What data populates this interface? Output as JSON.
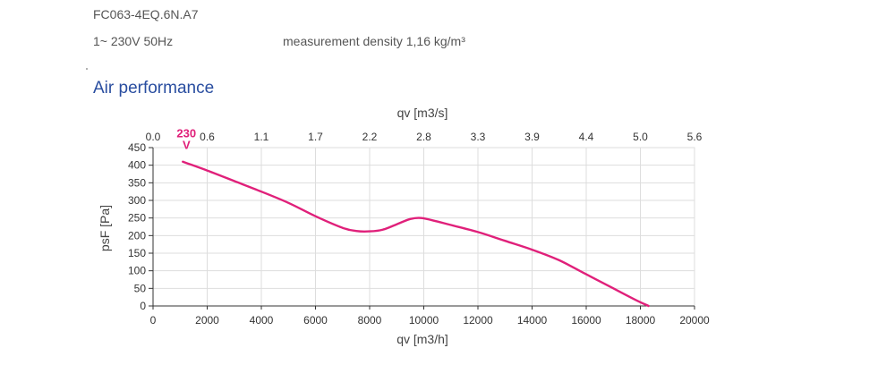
{
  "header": {
    "model": "FC063-4EQ.6N.A7",
    "supply": "1~ 230V 50Hz",
    "density": "measurement density 1,16 kg/m³"
  },
  "section": {
    "title": "Air performance"
  },
  "colors": {
    "curve": "#e0207a",
    "grid": "#dddddd",
    "axis": "#333333",
    "title": "#2a4ea0"
  },
  "chart_data": {
    "type": "line",
    "xlabel": "qv [m3/h]",
    "x2label": "qv [m3/s]",
    "ylabel": "psF [Pa]",
    "xlim": [
      0,
      20000
    ],
    "ylim": [
      0,
      450
    ],
    "x_ticks": [
      "0",
      "2000",
      "4000",
      "6000",
      "8000",
      "10000",
      "12000",
      "14000",
      "16000",
      "18000",
      "20000"
    ],
    "x2_ticks": [
      "0.0",
      "0.6",
      "1.1",
      "1.7",
      "2.2",
      "2.8",
      "3.3",
      "3.9",
      "4.4",
      "5.0",
      "5.6"
    ],
    "y_ticks": [
      "0",
      "50",
      "100",
      "150",
      "200",
      "250",
      "300",
      "350",
      "400",
      "450"
    ],
    "grid": true,
    "series": [
      {
        "name": "230 V",
        "x": [
          1100,
          2000,
          3000,
          4000,
          5000,
          6000,
          7000,
          7500,
          8000,
          8500,
          9000,
          9500,
          9900,
          10500,
          11000,
          12000,
          13000,
          14000,
          15000,
          16000,
          17000,
          17800,
          18300
        ],
        "y": [
          410,
          385,
          355,
          325,
          293,
          255,
          222,
          213,
          212,
          217,
          232,
          247,
          250,
          240,
          230,
          210,
          185,
          160,
          130,
          90,
          50,
          18,
          0
        ]
      }
    ]
  }
}
